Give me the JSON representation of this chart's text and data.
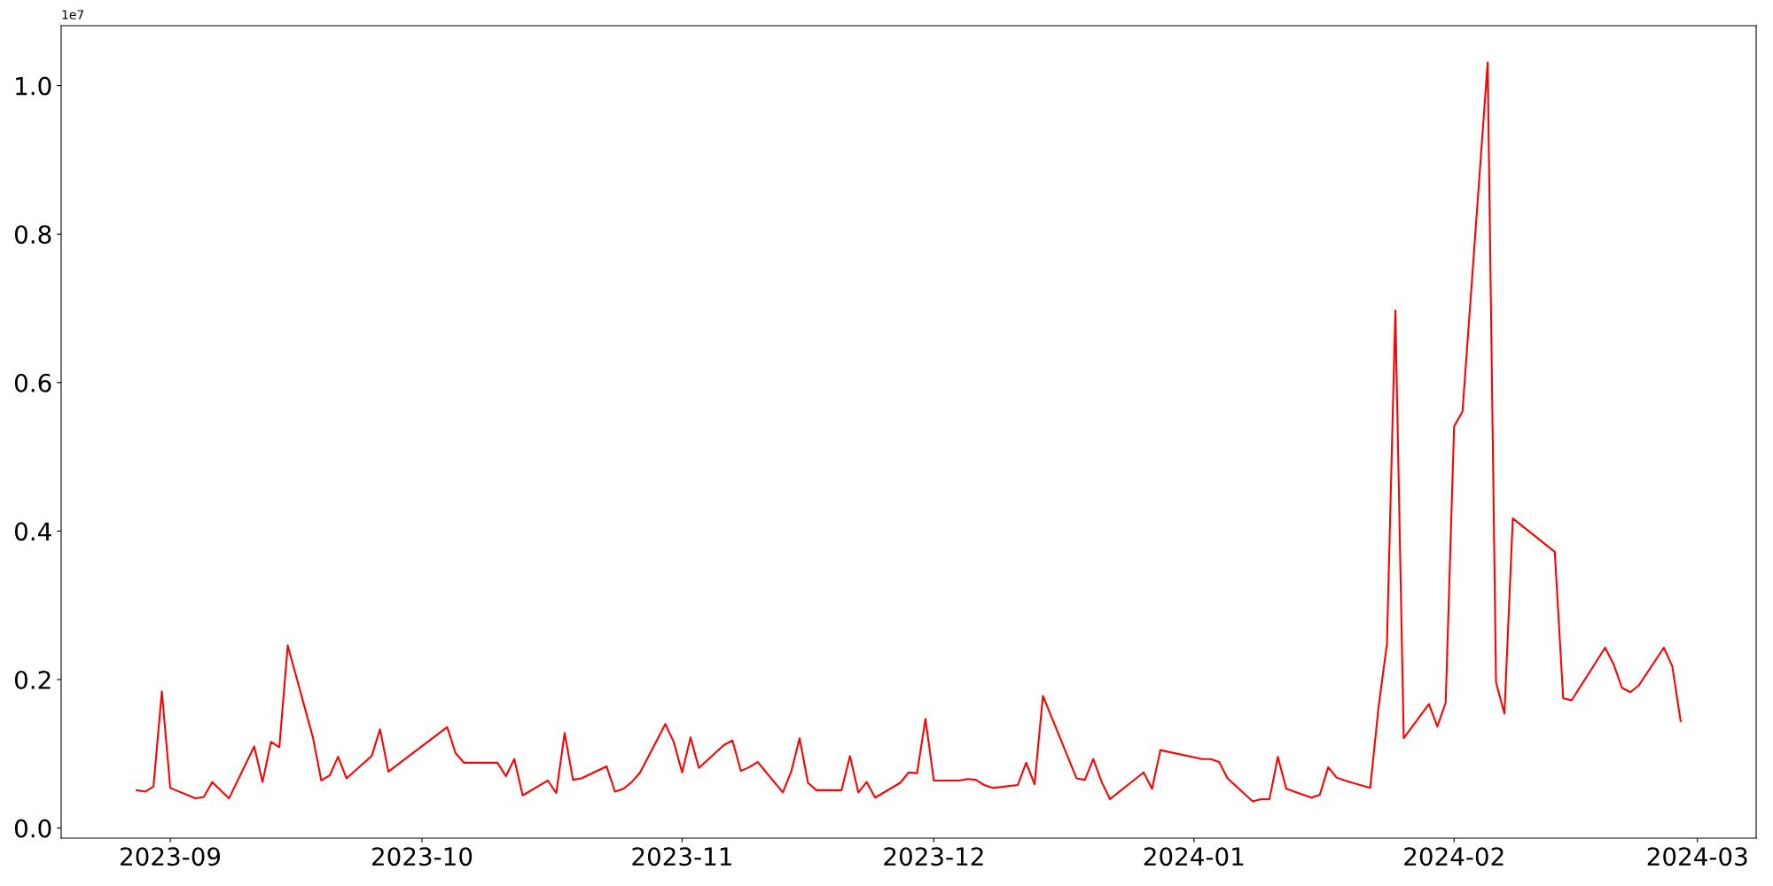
{
  "chart_data": {
    "type": "line",
    "x": [
      "2023-08-28",
      "2023-08-29",
      "2023-08-30",
      "2023-08-31",
      "2023-09-01",
      "2023-09-04",
      "2023-09-05",
      "2023-09-06",
      "2023-09-08",
      "2023-09-11",
      "2023-09-12",
      "2023-09-13",
      "2023-09-14",
      "2023-09-15",
      "2023-09-18",
      "2023-09-19",
      "2023-09-20",
      "2023-09-21",
      "2023-09-22",
      "2023-09-25",
      "2023-09-26",
      "2023-09-27",
      "2023-10-04",
      "2023-10-05",
      "2023-10-06",
      "2023-10-10",
      "2023-10-11",
      "2023-10-12",
      "2023-10-13",
      "2023-10-16",
      "2023-10-17",
      "2023-10-18",
      "2023-10-19",
      "2023-10-20",
      "2023-10-23",
      "2023-10-24",
      "2023-10-25",
      "2023-10-26",
      "2023-10-27",
      "2023-10-30",
      "2023-10-31",
      "2023-11-01",
      "2023-11-02",
      "2023-11-03",
      "2023-11-06",
      "2023-11-07",
      "2023-11-08",
      "2023-11-09",
      "2023-11-10",
      "2023-11-13",
      "2023-11-14",
      "2023-11-15",
      "2023-11-16",
      "2023-11-17",
      "2023-11-20",
      "2023-11-21",
      "2023-11-22",
      "2023-11-23",
      "2023-11-24",
      "2023-11-27",
      "2023-11-28",
      "2023-11-29",
      "2023-11-30",
      "2023-12-01",
      "2023-12-04",
      "2023-12-05",
      "2023-12-06",
      "2023-12-07",
      "2023-12-08",
      "2023-12-11",
      "2023-12-12",
      "2023-12-13",
      "2023-12-14",
      "2023-12-18",
      "2023-12-19",
      "2023-12-20",
      "2023-12-21",
      "2023-12-22",
      "2023-12-26",
      "2023-12-27",
      "2023-12-28",
      "2024-01-02",
      "2024-01-03",
      "2024-01-04",
      "2024-01-05",
      "2024-01-08",
      "2024-01-09",
      "2024-01-10",
      "2024-01-11",
      "2024-01-12",
      "2024-01-15",
      "2024-01-16",
      "2024-01-17",
      "2024-01-18",
      "2024-01-19",
      "2024-01-22",
      "2024-01-23",
      "2024-01-24",
      "2024-01-25",
      "2024-01-26",
      "2024-01-29",
      "2024-01-30",
      "2024-01-31",
      "2024-02-01",
      "2024-02-02",
      "2024-02-05",
      "2024-02-06",
      "2024-02-07",
      "2024-02-08",
      "2024-02-13",
      "2024-02-14",
      "2024-02-15",
      "2024-02-19",
      "2024-02-20",
      "2024-02-21",
      "2024-02-22",
      "2024-02-23",
      "2024-02-26",
      "2024-02-27",
      "2024-02-28"
    ],
    "series": [
      {
        "color": "#ff0000",
        "values": [
          0.051,
          0.049,
          0.056,
          0.184,
          0.054,
          0.04,
          0.042,
          0.062,
          0.04,
          0.11,
          0.062,
          0.116,
          0.109,
          0.246,
          0.122,
          0.064,
          0.071,
          0.096,
          0.067,
          0.097,
          0.133,
          0.076,
          0.136,
          0.101,
          0.088,
          0.088,
          0.07,
          0.093,
          0.044,
          0.064,
          0.047,
          0.128,
          0.065,
          0.067,
          0.083,
          0.049,
          0.053,
          0.062,
          0.075,
          0.14,
          0.116,
          0.075,
          0.122,
          0.081,
          0.112,
          0.118,
          0.077,
          0.082,
          0.089,
          0.048,
          0.076,
          0.121,
          0.061,
          0.051,
          0.051,
          0.097,
          0.048,
          0.062,
          0.041,
          0.061,
          0.075,
          0.074,
          0.147,
          0.064,
          0.064,
          0.066,
          0.065,
          0.058,
          0.054,
          0.058,
          0.088,
          0.059,
          0.178,
          0.067,
          0.065,
          0.093,
          0.062,
          0.039,
          0.075,
          0.053,
          0.105,
          0.093,
          0.093,
          0.089,
          0.067,
          0.036,
          0.039,
          0.039,
          0.096,
          0.053,
          0.041,
          0.045,
          0.082,
          0.068,
          0.064,
          0.054,
          0.163,
          0.248,
          0.697,
          0.121,
          0.167,
          0.137,
          0.169,
          0.541,
          0.561,
          1.031,
          0.196,
          0.154,
          0.417,
          0.372,
          0.175,
          0.172,
          0.243,
          0.221,
          0.189,
          0.183,
          0.192,
          0.243,
          0.218,
          0.144
        ]
      }
    ],
    "xlim": [
      "2023-08-19",
      "2024-03-08"
    ],
    "xticks": [
      {
        "value": "2023-09-01",
        "label": "2023-09"
      },
      {
        "value": "2023-10-01",
        "label": "2023-10"
      },
      {
        "value": "2023-11-01",
        "label": "2023-11"
      },
      {
        "value": "2023-12-01",
        "label": "2023-12"
      },
      {
        "value": "2024-01-01",
        "label": "2024-01"
      },
      {
        "value": "2024-02-01",
        "label": "2024-02"
      },
      {
        "value": "2024-03-01",
        "label": "2024-03"
      }
    ],
    "ylim": [
      -0.0136,
      1.0807
    ],
    "yticks": [
      {
        "value": 0,
        "label": "0.0"
      },
      0.2,
      0.4,
      0.6,
      0.8,
      {
        "value": 1,
        "label": "1.0"
      }
    ],
    "annotations": [
      "1e7"
    ],
    "grid": false,
    "legend": false,
    "marker": "none",
    "line_style": "solid"
  }
}
